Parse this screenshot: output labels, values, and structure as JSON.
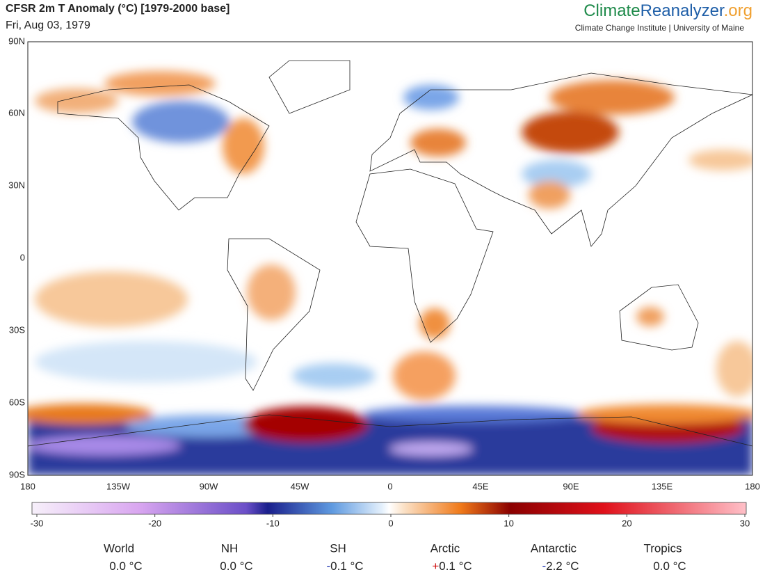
{
  "header": {
    "title": "CFSR 2m T Anomaly (°C) [1979-2000 base]",
    "date": "Fri, Aug 03, 1979"
  },
  "brand": {
    "part1": "Climate",
    "part2": "Reanalyzer",
    "part3": ".org",
    "subtitle": "Climate Change Institute | University of Maine"
  },
  "map": {
    "lat_labels": [
      "90N",
      "60N",
      "30N",
      "0",
      "30S",
      "60S",
      "90S"
    ],
    "lon_labels": [
      "180",
      "135W",
      "90W",
      "45W",
      "0",
      "45E",
      "90E",
      "135E",
      "180"
    ]
  },
  "colorbar": {
    "range": [
      -30,
      30
    ],
    "ticks": [
      -30,
      -20,
      -10,
      0,
      10,
      20,
      30
    ]
  },
  "stats": [
    {
      "region": "World",
      "value": "0.0 °C"
    },
    {
      "region": "NH",
      "value": "0.0 °C"
    },
    {
      "region": "SH",
      "sign": "-",
      "value": "0.1 °C"
    },
    {
      "region": "Arctic",
      "sign": "+",
      "value": "0.1 °C"
    },
    {
      "region": "Antarctic",
      "sign": "-",
      "value": "2.2 °C"
    },
    {
      "region": "Tropics",
      "value": "0.0 °C"
    }
  ]
}
